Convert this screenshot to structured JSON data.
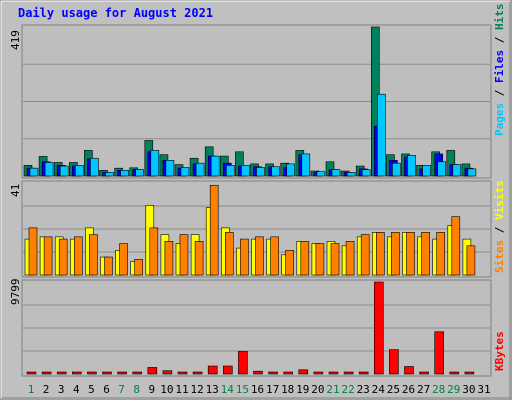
{
  "title": "Daily usage for August 2021",
  "colors": {
    "frame": "#c0c0c0",
    "plot": "#bebebe",
    "title": "#0000ff",
    "hits": "#00805c",
    "files": "#0000ff",
    "pages": "#00c8ff",
    "visits": "#ffff00",
    "sites": "#ff8000",
    "kbytes": "#ff0000",
    "weekday_label": "#000000",
    "weekend_label": "#008040"
  },
  "chart_data": [
    {
      "type": "bar",
      "panel": "hits-files-pages",
      "ymax_label": "419",
      "ylim": [
        0,
        419
      ],
      "legend": {
        "items": [
          "Pages",
          "Files",
          "Hits"
        ],
        "separator": " / "
      },
      "categories": [
        "1",
        "2",
        "3",
        "4",
        "5",
        "6",
        "7",
        "8",
        "9",
        "10",
        "11",
        "12",
        "13",
        "14",
        "15",
        "16",
        "17",
        "18",
        "19",
        "20",
        "21",
        "22",
        "23",
        "24",
        "25",
        "26",
        "27",
        "28",
        "29",
        "30",
        "31"
      ],
      "weekend_days": [
        "1",
        "7",
        "8",
        "14",
        "15",
        "21",
        "22",
        "28",
        "29"
      ],
      "series": [
        {
          "name": "Hits",
          "values": [
            30,
            55,
            38,
            38,
            72,
            16,
            22,
            23,
            100,
            60,
            32,
            50,
            82,
            56,
            68,
            34,
            34,
            36,
            72,
            14,
            40,
            14,
            28,
            419,
            60,
            62,
            30,
            68,
            72,
            34,
            0
          ]
        },
        {
          "name": "Files",
          "values": [
            22,
            40,
            30,
            28,
            48,
            10,
            16,
            18,
            68,
            44,
            22,
            34,
            56,
            36,
            28,
            26,
            26,
            24,
            60,
            10,
            18,
            10,
            20,
            140,
            44,
            54,
            20,
            62,
            32,
            22,
            0
          ]
        },
        {
          "name": "Pages",
          "values": [
            22,
            38,
            28,
            30,
            50,
            10,
            16,
            18,
            72,
            44,
            24,
            36,
            56,
            30,
            30,
            24,
            26,
            34,
            62,
            12,
            18,
            10,
            18,
            230,
            36,
            58,
            30,
            40,
            32,
            20,
            0
          ]
        }
      ]
    },
    {
      "type": "bar",
      "panel": "visits-sites",
      "ymax_label": "41",
      "ylim": [
        0,
        41
      ],
      "legend": {
        "items": [
          "Sites",
          "Visits"
        ],
        "separator": " / "
      },
      "categories": [
        "1",
        "2",
        "3",
        "4",
        "5",
        "6",
        "7",
        "8",
        "9",
        "10",
        "11",
        "12",
        "13",
        "14",
        "15",
        "16",
        "17",
        "18",
        "19",
        "20",
        "21",
        "22",
        "23",
        "24",
        "25",
        "26",
        "27",
        "28",
        "29",
        "30",
        "31"
      ],
      "series": [
        {
          "name": "Visits",
          "values": [
            16,
            17,
            17,
            16,
            21,
            8,
            11,
            6,
            31,
            18,
            14,
            18,
            30,
            21,
            12,
            16,
            16,
            9,
            15,
            14,
            15,
            13,
            17,
            19,
            17,
            19,
            17,
            16,
            22,
            16,
            0
          ]
        },
        {
          "name": "Sites",
          "values": [
            21,
            17,
            16,
            17,
            18,
            8,
            14,
            7,
            21,
            15,
            18,
            15,
            40,
            19,
            16,
            17,
            17,
            11,
            15,
            14,
            14,
            15,
            18,
            19,
            19,
            19,
            19,
            19,
            26,
            13,
            0
          ]
        }
      ]
    },
    {
      "type": "bar",
      "panel": "kbytes",
      "ymax_label": "9799",
      "ylim": [
        0,
        9799
      ],
      "legend": {
        "items": [
          "KBytes"
        ],
        "separator": ""
      },
      "categories": [
        "1",
        "2",
        "3",
        "4",
        "5",
        "6",
        "7",
        "8",
        "9",
        "10",
        "11",
        "12",
        "13",
        "14",
        "15",
        "16",
        "17",
        "18",
        "19",
        "20",
        "21",
        "22",
        "23",
        "24",
        "25",
        "26",
        "27",
        "28",
        "29",
        "30",
        "31"
      ],
      "series": [
        {
          "name": "KBytes",
          "values": [
            50,
            60,
            60,
            60,
            150,
            60,
            120,
            60,
            700,
            350,
            60,
            60,
            850,
            850,
            2400,
            300,
            60,
            60,
            450,
            60,
            60,
            60,
            60,
            9799,
            2600,
            800,
            200,
            4500,
            60,
            60,
            0
          ]
        }
      ]
    }
  ]
}
